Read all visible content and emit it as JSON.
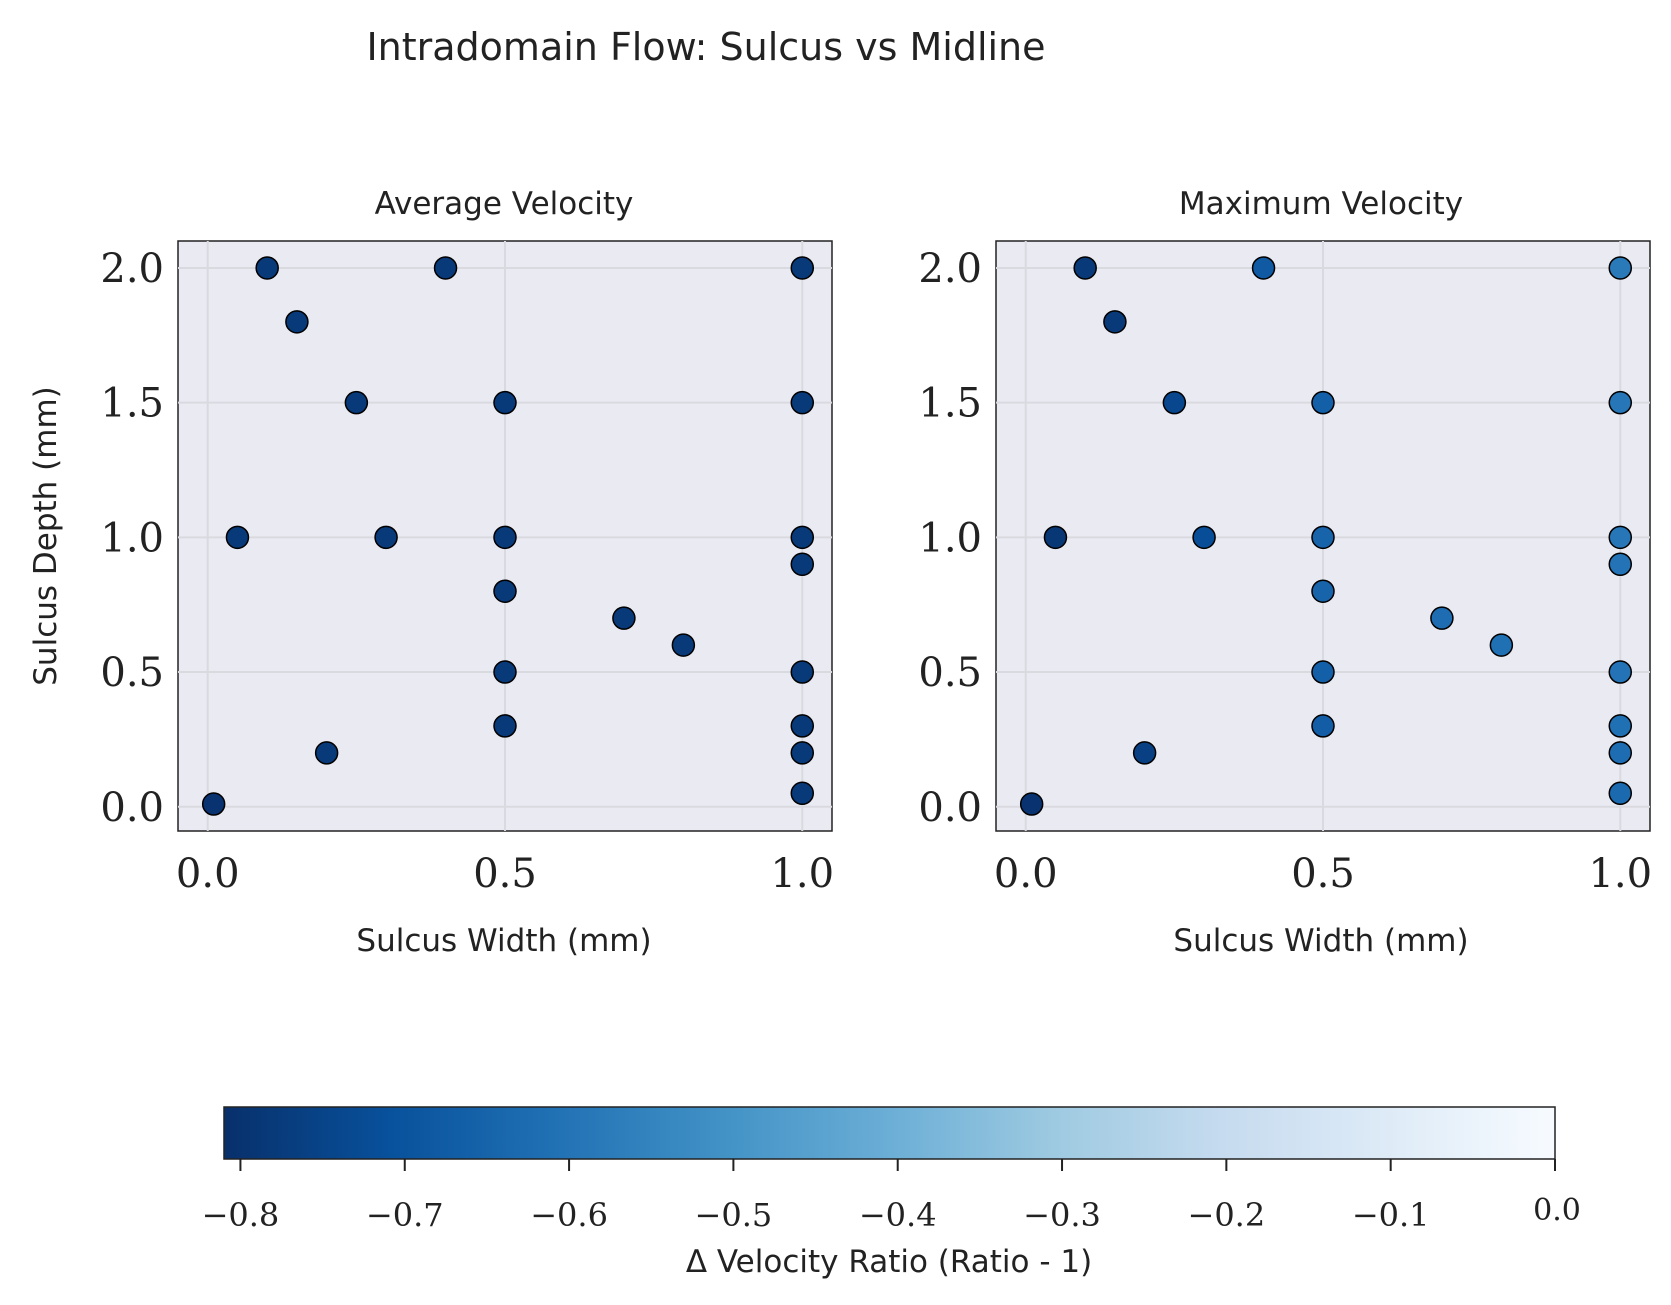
{
  "figure": {
    "title": "Intradomain Flow: Sulcus vs Midline"
  },
  "colorbar": {
    "label": "Δ Velocity Ratio (Ratio - 1)",
    "min": -0.81,
    "max": 0.0,
    "ticks": [
      -0.8,
      -0.7,
      -0.6,
      -0.5,
      -0.4,
      -0.3,
      -0.2,
      -0.1,
      0.0
    ],
    "tick_labels": [
      "−0.8",
      "−0.7",
      "−0.6",
      "−0.5",
      "−0.4",
      "−0.3",
      "−0.2",
      "−0.1",
      "0.0"
    ],
    "colormap": "Blues_r",
    "colormap_stops": [
      "#08306b",
      "#08519c",
      "#2171b5",
      "#4292c6",
      "#6baed6",
      "#9ecae1",
      "#c6dbef",
      "#deebf7",
      "#f7fbff"
    ]
  },
  "chart_data": [
    {
      "type": "scatter",
      "title": "Average Velocity",
      "xlabel": "Sulcus Width (mm)",
      "ylabel": "Sulcus Depth (mm)",
      "xlim": [
        -0.05,
        1.05
      ],
      "ylim": [
        -0.09,
        2.1
      ],
      "xticks": [
        0.0,
        0.5,
        1.0
      ],
      "xtick_labels": [
        "0.0",
        "0.5",
        "1.0"
      ],
      "yticks": [
        0.0,
        0.5,
        1.0,
        1.5,
        2.0
      ],
      "ytick_labels": [
        "0.0",
        "0.5",
        "1.0",
        "1.5",
        "2.0"
      ],
      "grid": true,
      "points": [
        {
          "x": 0.1,
          "y": 2.0,
          "value": -0.78
        },
        {
          "x": 0.4,
          "y": 2.0,
          "value": -0.78
        },
        {
          "x": 1.0,
          "y": 2.0,
          "value": -0.78
        },
        {
          "x": 0.15,
          "y": 1.8,
          "value": -0.78
        },
        {
          "x": 0.25,
          "y": 1.5,
          "value": -0.78
        },
        {
          "x": 0.5,
          "y": 1.5,
          "value": -0.78
        },
        {
          "x": 1.0,
          "y": 1.5,
          "value": -0.78
        },
        {
          "x": 0.05,
          "y": 1.0,
          "value": -0.78
        },
        {
          "x": 0.3,
          "y": 1.0,
          "value": -0.78
        },
        {
          "x": 0.5,
          "y": 1.0,
          "value": -0.78
        },
        {
          "x": 1.0,
          "y": 1.0,
          "value": -0.78
        },
        {
          "x": 1.0,
          "y": 0.9,
          "value": -0.78
        },
        {
          "x": 0.5,
          "y": 0.8,
          "value": -0.78
        },
        {
          "x": 0.7,
          "y": 0.7,
          "value": -0.78
        },
        {
          "x": 0.8,
          "y": 0.6,
          "value": -0.78
        },
        {
          "x": 0.5,
          "y": 0.5,
          "value": -0.78
        },
        {
          "x": 1.0,
          "y": 0.5,
          "value": -0.78
        },
        {
          "x": 0.5,
          "y": 0.3,
          "value": -0.78
        },
        {
          "x": 1.0,
          "y": 0.3,
          "value": -0.78
        },
        {
          "x": 0.2,
          "y": 0.2,
          "value": -0.78
        },
        {
          "x": 1.0,
          "y": 0.2,
          "value": -0.78
        },
        {
          "x": 1.0,
          "y": 0.05,
          "value": -0.78
        },
        {
          "x": 0.01,
          "y": 0.01,
          "value": -0.8
        }
      ]
    },
    {
      "type": "scatter",
      "title": "Maximum Velocity",
      "xlabel": "Sulcus Width (mm)",
      "ylabel": "",
      "xlim": [
        -0.05,
        1.05
      ],
      "ylim": [
        -0.09,
        2.1
      ],
      "xticks": [
        0.0,
        0.5,
        1.0
      ],
      "xtick_labels": [
        "0.0",
        "0.5",
        "1.0"
      ],
      "yticks": [
        0.0,
        0.5,
        1.0,
        1.5,
        2.0
      ],
      "ytick_labels": [
        "0.0",
        "0.5",
        "1.0",
        "1.5",
        "2.0"
      ],
      "grid": true,
      "points": [
        {
          "x": 0.1,
          "y": 2.0,
          "value": -0.78
        },
        {
          "x": 0.4,
          "y": 2.0,
          "value": -0.68
        },
        {
          "x": 1.0,
          "y": 2.0,
          "value": -0.58
        },
        {
          "x": 0.15,
          "y": 1.8,
          "value": -0.78
        },
        {
          "x": 0.25,
          "y": 1.5,
          "value": -0.74
        },
        {
          "x": 0.5,
          "y": 1.5,
          "value": -0.66
        },
        {
          "x": 1.0,
          "y": 1.5,
          "value": -0.59
        },
        {
          "x": 0.05,
          "y": 1.0,
          "value": -0.79
        },
        {
          "x": 0.3,
          "y": 1.0,
          "value": -0.72
        },
        {
          "x": 0.5,
          "y": 1.0,
          "value": -0.65
        },
        {
          "x": 1.0,
          "y": 1.0,
          "value": -0.59
        },
        {
          "x": 1.0,
          "y": 0.9,
          "value": -0.6
        },
        {
          "x": 0.5,
          "y": 0.8,
          "value": -0.65
        },
        {
          "x": 0.7,
          "y": 0.7,
          "value": -0.62
        },
        {
          "x": 0.8,
          "y": 0.6,
          "value": -0.61
        },
        {
          "x": 0.5,
          "y": 0.5,
          "value": -0.66
        },
        {
          "x": 1.0,
          "y": 0.5,
          "value": -0.6
        },
        {
          "x": 0.5,
          "y": 0.3,
          "value": -0.67
        },
        {
          "x": 1.0,
          "y": 0.3,
          "value": -0.61
        },
        {
          "x": 0.2,
          "y": 0.2,
          "value": -0.76
        },
        {
          "x": 1.0,
          "y": 0.2,
          "value": -0.62
        },
        {
          "x": 1.0,
          "y": 0.05,
          "value": -0.63
        },
        {
          "x": 0.01,
          "y": 0.01,
          "value": -0.8
        }
      ]
    }
  ]
}
